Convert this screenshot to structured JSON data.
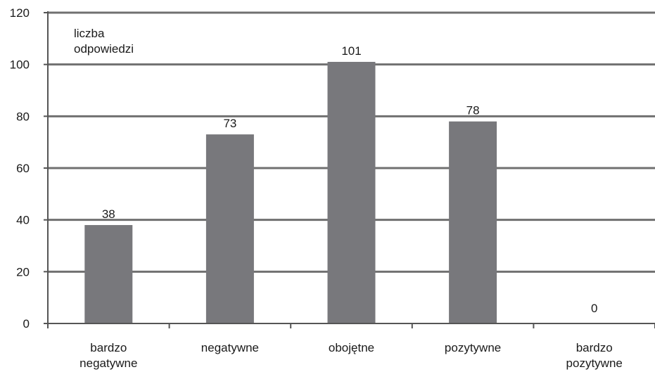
{
  "chart_data": {
    "type": "bar",
    "title": "",
    "ylabel": [
      "liczba",
      "odpowiedzi"
    ],
    "xlabel": "",
    "categories": [
      [
        "bardzo",
        "negatywne"
      ],
      [
        "negatywne"
      ],
      [
        "obojętne"
      ],
      [
        "pozytywne"
      ],
      [
        "bardzo",
        "pozytywne"
      ]
    ],
    "values": [
      38,
      73,
      101,
      78,
      0
    ],
    "ylim": [
      0,
      120
    ],
    "yticks": [
      0,
      20,
      40,
      60,
      80,
      100,
      120
    ],
    "grid": true,
    "legend": "none",
    "colors": {
      "bar": "#78787c",
      "grid": "#707070",
      "axis": "#555555"
    }
  }
}
